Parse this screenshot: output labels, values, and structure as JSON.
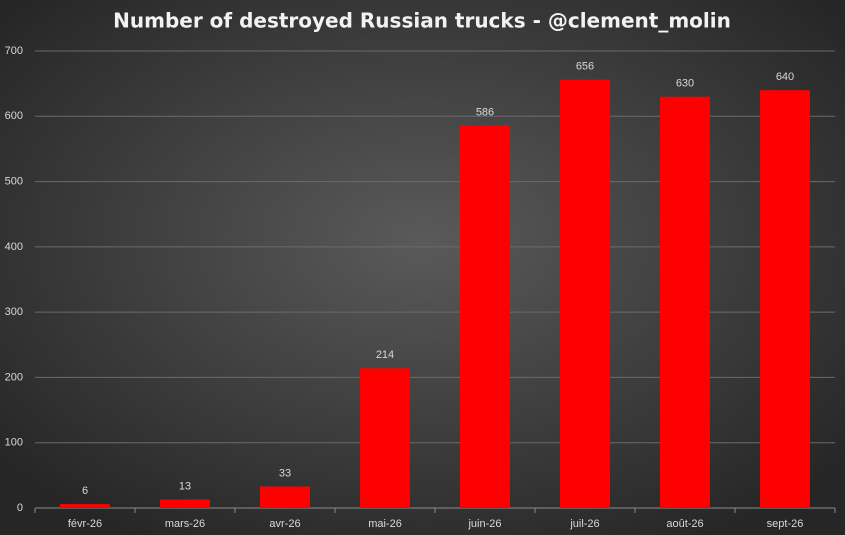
{
  "chart_data": {
    "type": "bar",
    "title": "Number of destroyed Russian trucks - @clement_molin",
    "categories": [
      "févr-26",
      "mars-26",
      "avr-26",
      "mai-26",
      "juin-26",
      "juil-26",
      "août-26",
      "sept-26"
    ],
    "values": [
      6,
      13,
      33,
      214,
      586,
      656,
      630,
      640
    ],
    "color": "#ff0000",
    "ylim": [
      0,
      700
    ],
    "yticks": [
      0,
      100,
      200,
      300,
      400,
      500,
      600,
      700
    ],
    "grid": true
  }
}
